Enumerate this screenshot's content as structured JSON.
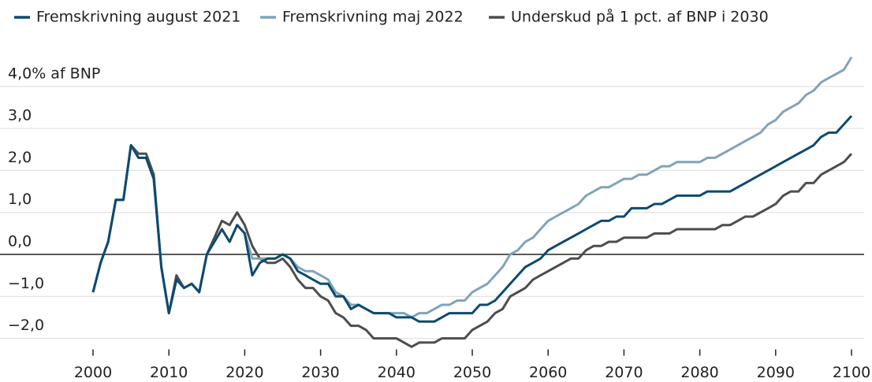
{
  "chart_data": {
    "type": "line",
    "x": [
      2000,
      2001,
      2002,
      2003,
      2004,
      2005,
      2006,
      2007,
      2008,
      2009,
      2010,
      2011,
      2012,
      2013,
      2014,
      2015,
      2016,
      2017,
      2018,
      2019,
      2020,
      2021,
      2022,
      2023,
      2024,
      2025,
      2026,
      2027,
      2028,
      2029,
      2030,
      2031,
      2032,
      2033,
      2034,
      2035,
      2036,
      2037,
      2038,
      2039,
      2040,
      2041,
      2042,
      2043,
      2044,
      2045,
      2046,
      2047,
      2048,
      2049,
      2050,
      2051,
      2052,
      2053,
      2054,
      2055,
      2056,
      2057,
      2058,
      2059,
      2060,
      2061,
      2062,
      2063,
      2064,
      2065,
      2066,
      2067,
      2068,
      2069,
      2070,
      2071,
      2072,
      2073,
      2074,
      2075,
      2076,
      2077,
      2078,
      2079,
      2080,
      2081,
      2082,
      2083,
      2084,
      2085,
      2086,
      2087,
      2088,
      2089,
      2090,
      2091,
      2092,
      2093,
      2094,
      2095,
      2096,
      2097,
      2098,
      2099,
      2100
    ],
    "series": [
      {
        "name": "Underskud på 1 pct. af BNP i 2030",
        "color": "#4d4d4d",
        "values": [
          -0.9,
          -0.2,
          0.3,
          1.3,
          1.3,
          2.6,
          2.4,
          2.4,
          1.9,
          -0.3,
          -1.4,
          -0.5,
          -0.8,
          -0.7,
          -0.9,
          0.0,
          0.4,
          0.8,
          0.7,
          1.0,
          0.7,
          0.2,
          -0.1,
          -0.2,
          -0.2,
          -0.1,
          -0.3,
          -0.6,
          -0.8,
          -0.8,
          -1.0,
          -1.1,
          -1.4,
          -1.5,
          -1.7,
          -1.7,
          -1.8,
          -2.0,
          -2.0,
          -2.0,
          -2.0,
          -2.1,
          -2.2,
          -2.1,
          -2.1,
          -2.1,
          -2.0,
          -2.0,
          -2.0,
          -2.0,
          -1.8,
          -1.7,
          -1.6,
          -1.4,
          -1.3,
          -1.0,
          -0.9,
          -0.8,
          -0.6,
          -0.5,
          -0.4,
          -0.3,
          -0.2,
          -0.1,
          -0.1,
          0.1,
          0.2,
          0.2,
          0.3,
          0.3,
          0.4,
          0.4,
          0.4,
          0.4,
          0.5,
          0.5,
          0.5,
          0.6,
          0.6,
          0.6,
          0.6,
          0.6,
          0.6,
          0.7,
          0.7,
          0.8,
          0.9,
          0.9,
          1.0,
          1.1,
          1.2,
          1.4,
          1.5,
          1.5,
          1.7,
          1.7,
          1.9,
          2.0,
          2.1,
          2.2,
          2.4
        ]
      },
      {
        "name": "Fremskrivning maj 2022",
        "color": "#80a4b9",
        "values": [
          -0.9,
          -0.2,
          0.3,
          1.3,
          1.3,
          2.6,
          2.3,
          2.3,
          1.8,
          -0.3,
          -1.4,
          -0.6,
          -0.8,
          -0.7,
          -0.9,
          0.0,
          0.3,
          0.6,
          0.3,
          0.7,
          0.5,
          -0.1,
          -0.1,
          -0.1,
          -0.1,
          0.0,
          -0.1,
          -0.3,
          -0.4,
          -0.4,
          -0.5,
          -0.6,
          -0.9,
          -1.0,
          -1.2,
          -1.2,
          -1.3,
          -1.4,
          -1.4,
          -1.4,
          -1.4,
          -1.4,
          -1.5,
          -1.4,
          -1.4,
          -1.3,
          -1.2,
          -1.2,
          -1.1,
          -1.1,
          -0.9,
          -0.8,
          -0.7,
          -0.5,
          -0.3,
          0.0,
          0.1,
          0.3,
          0.4,
          0.6,
          0.8,
          0.9,
          1.0,
          1.1,
          1.2,
          1.4,
          1.5,
          1.6,
          1.6,
          1.7,
          1.8,
          1.8,
          1.9,
          1.9,
          2.0,
          2.1,
          2.1,
          2.2,
          2.2,
          2.2,
          2.2,
          2.3,
          2.3,
          2.4,
          2.5,
          2.6,
          2.7,
          2.8,
          2.9,
          3.1,
          3.2,
          3.4,
          3.5,
          3.6,
          3.8,
          3.9,
          4.1,
          4.2,
          4.3,
          4.4,
          4.7
        ]
      },
      {
        "name": "Fremskrivning august 2021",
        "color": "#0d4a70",
        "values": [
          -0.9,
          -0.2,
          0.3,
          1.3,
          1.3,
          2.6,
          2.3,
          2.3,
          1.8,
          -0.3,
          -1.4,
          -0.6,
          -0.8,
          -0.7,
          -0.9,
          0.0,
          0.3,
          0.6,
          0.3,
          0.7,
          0.5,
          -0.5,
          -0.2,
          -0.1,
          -0.1,
          0.0,
          -0.1,
          -0.4,
          -0.5,
          -0.6,
          -0.7,
          -0.7,
          -1.0,
          -1.0,
          -1.3,
          -1.2,
          -1.3,
          -1.4,
          -1.4,
          -1.4,
          -1.5,
          -1.5,
          -1.5,
          -1.6,
          -1.6,
          -1.6,
          -1.5,
          -1.4,
          -1.4,
          -1.4,
          -1.4,
          -1.2,
          -1.2,
          -1.1,
          -0.9,
          -0.7,
          -0.5,
          -0.3,
          -0.2,
          -0.1,
          0.1,
          0.2,
          0.3,
          0.4,
          0.5,
          0.6,
          0.7,
          0.8,
          0.8,
          0.9,
          0.9,
          1.1,
          1.1,
          1.1,
          1.2,
          1.2,
          1.3,
          1.4,
          1.4,
          1.4,
          1.4,
          1.5,
          1.5,
          1.5,
          1.5,
          1.6,
          1.7,
          1.8,
          1.9,
          2.0,
          2.1,
          2.2,
          2.3,
          2.4,
          2.5,
          2.6,
          2.8,
          2.9,
          2.9,
          3.1,
          3.3
        ]
      }
    ],
    "legend_order": [
      2,
      1,
      0
    ],
    "xlim": [
      2000,
      2100
    ],
    "xticks": [
      2000,
      2010,
      2020,
      2030,
      2040,
      2050,
      2060,
      2070,
      2080,
      2090,
      2100
    ],
    "ylim": [
      -2.3,
      4.8
    ],
    "yticks": [
      {
        "value": -2,
        "label": "−2,0"
      },
      {
        "value": -1,
        "label": "−1,0"
      },
      {
        "value": 0,
        "label": "0,0"
      },
      {
        "value": 1,
        "label": "1,0"
      },
      {
        "value": 2,
        "label": "2,0"
      },
      {
        "value": 3,
        "label": "3,0"
      },
      {
        "value": 4,
        "label": "4,0% af BNP"
      }
    ],
    "grid": true
  }
}
